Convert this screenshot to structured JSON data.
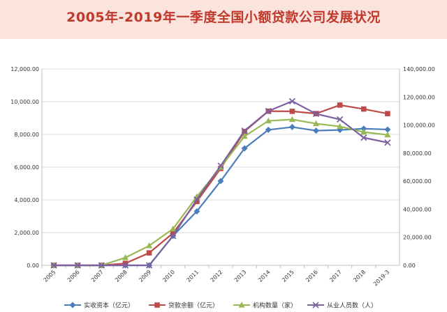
{
  "colors": {
    "banner_bg": "#fbe3de",
    "title": "#c0392b",
    "grid": "#d9d9d9"
  },
  "chart_data": {
    "type": "line",
    "title": "2005年-2019年一季度全国小额贷款公司发展状况",
    "categories": [
      "2005",
      "2006",
      "2007",
      "2008",
      "2009",
      "2010",
      "2011",
      "2012",
      "2013",
      "2014",
      "2015",
      "2016",
      "2017",
      "2018",
      "2019-3"
    ],
    "y_left": {
      "range": [
        0,
        12000
      ],
      "step": 2000,
      "ticks": [
        "0.00",
        "2,000.00",
        "4,000.00",
        "6,000.00",
        "8,000.00",
        "10,000.00",
        "12,000.00"
      ]
    },
    "y_right": {
      "range": [
        0,
        140000
      ],
      "step": 20000,
      "ticks": [
        "0.00",
        "20,000.00",
        "40,000.00",
        "60,000.00",
        "80,000.00",
        "100,000.00",
        "120,000.00",
        "140,000.00"
      ]
    },
    "grid": true,
    "legend_position": "bottom",
    "series": [
      {
        "name": "实收资本（亿元）",
        "axis": "left",
        "color": "#4a7ebb",
        "marker": "diamond",
        "values": [
          0,
          0,
          0,
          0,
          0,
          1800,
          3300,
          5150,
          7150,
          8280,
          8450,
          8230,
          8270,
          8350,
          8300
        ]
      },
      {
        "name": "贷款余额（亿元）",
        "axis": "left",
        "color": "#be4b48",
        "marker": "square",
        "values": [
          0,
          0,
          0,
          120,
          760,
          1970,
          3900,
          5920,
          8180,
          9420,
          9410,
          9270,
          9790,
          9550,
          9270
        ]
      },
      {
        "name": "机构数量（家）",
        "axis": "right",
        "color": "#98b954",
        "marker": "triangle",
        "values": [
          0,
          0,
          0,
          5500,
          14000,
          26000,
          49000,
          70000,
          92000,
          103000,
          104000,
          101000,
          99000,
          95000,
          93000
        ]
      },
      {
        "name": "从业人员数（人）",
        "axis": "right",
        "color": "#7d60a0",
        "marker": "x",
        "values": [
          0,
          0,
          0,
          0,
          0,
          21000,
          47000,
          71000,
          96000,
          110000,
          117000,
          108000,
          104000,
          91000,
          87500
        ]
      }
    ]
  }
}
